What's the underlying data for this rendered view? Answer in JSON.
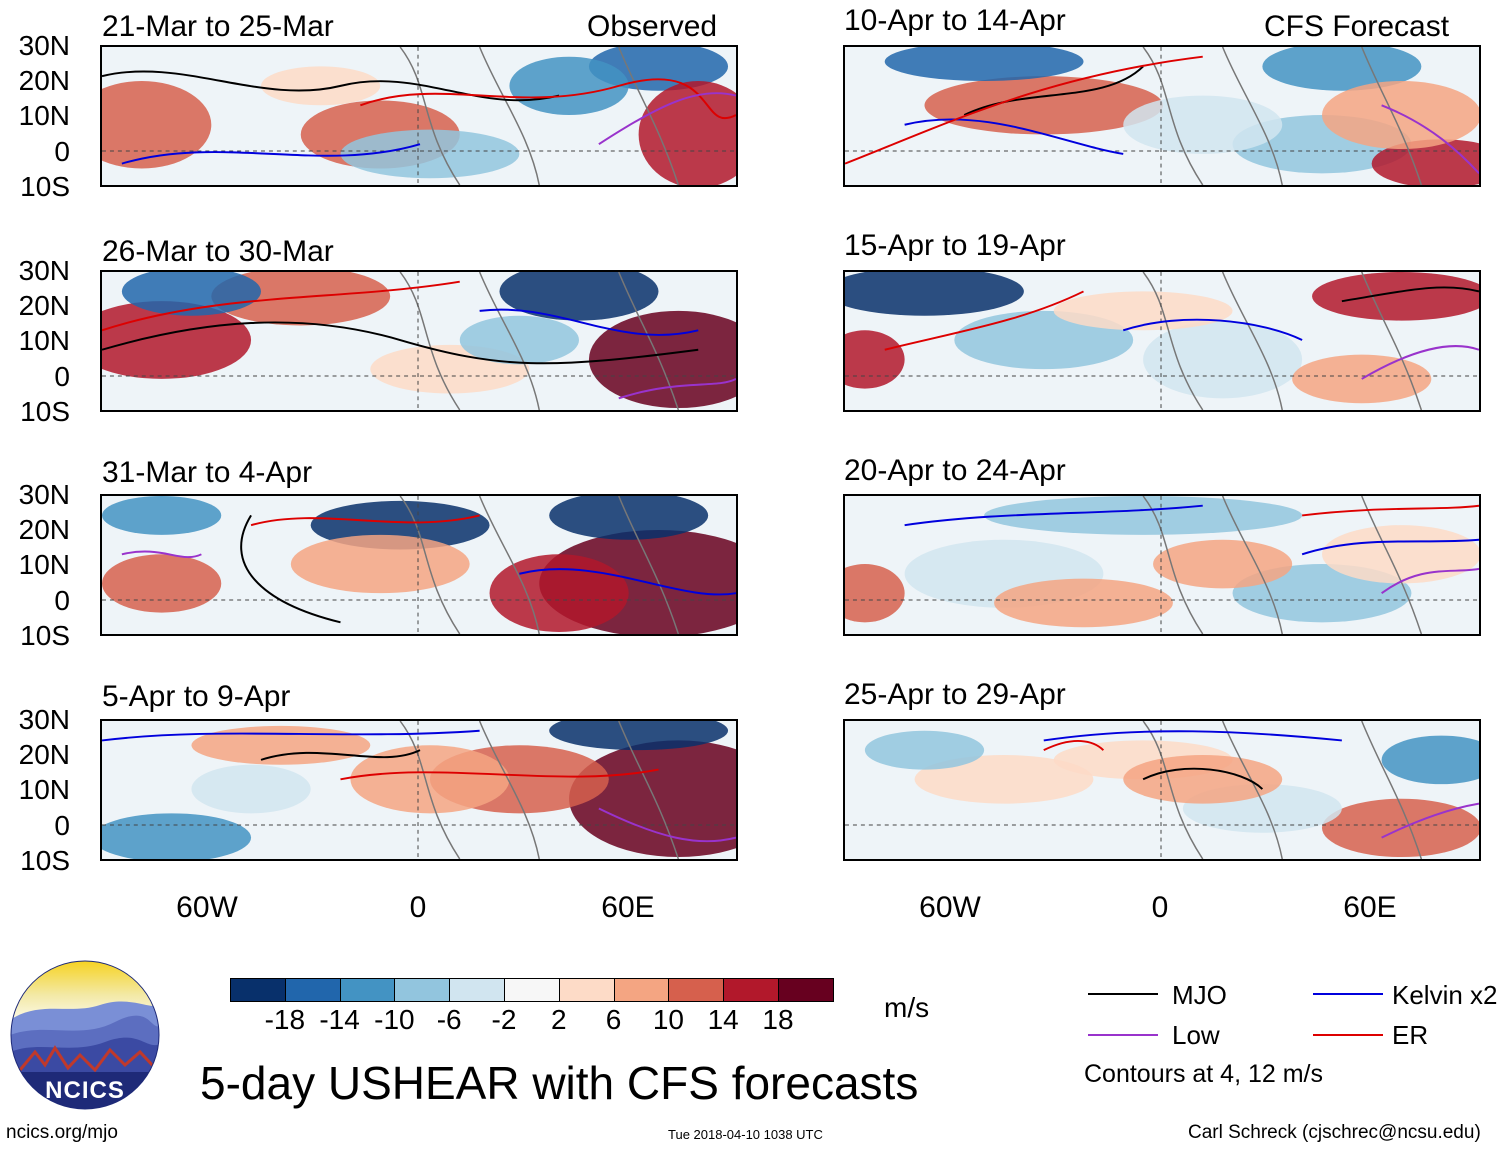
{
  "header": {
    "observed_label": "Observed",
    "forecast_label": "CFS Forecast"
  },
  "panels_left": [
    {
      "title": "21-Mar to 25-Mar"
    },
    {
      "title": "26-Mar to 30-Mar"
    },
    {
      "title": "31-Mar to 4-Apr"
    },
    {
      "title": "5-Apr to 9-Apr"
    }
  ],
  "panels_right": [
    {
      "title": "10-Apr to 14-Apr"
    },
    {
      "title": "15-Apr to 19-Apr"
    },
    {
      "title": "20-Apr to 24-Apr"
    },
    {
      "title": "25-Apr to 29-Apr"
    }
  ],
  "lat_labels": [
    "30N",
    "20N",
    "10N",
    "0",
    "10S"
  ],
  "lon_labels": [
    "60W",
    "0",
    "60E"
  ],
  "colorbar": {
    "unit": "m/s",
    "labels": [
      "-18",
      "-14",
      "-10",
      "-6",
      "-2",
      "2",
      "6",
      "10",
      "14",
      "18"
    ],
    "colors": [
      "#08306b",
      "#2166ac",
      "#4393c3",
      "#92c5de",
      "#d1e5f0",
      "#f7f7f7",
      "#fddbc7",
      "#f4a582",
      "#d6604d",
      "#b2182b",
      "#67001f"
    ]
  },
  "legend": {
    "mjo": "MJO",
    "kelvin": "Kelvin x2",
    "low": "Low",
    "er": "ER",
    "note": "Contours at 4, 12 m/s",
    "colors": {
      "mjo": "#000000",
      "kelvin": "#0000dd",
      "low": "#9933cc",
      "er": "#dd0000"
    }
  },
  "logo": {
    "text": "NCICS"
  },
  "title": "5-day USHEAR with CFS forecasts",
  "footer": {
    "url": "ncics.org/mjo",
    "timestamp": "Tue 2018-04-10 1038 UTC",
    "author": "Carl Schreck (cjschrec@ncsu.edu)"
  }
}
